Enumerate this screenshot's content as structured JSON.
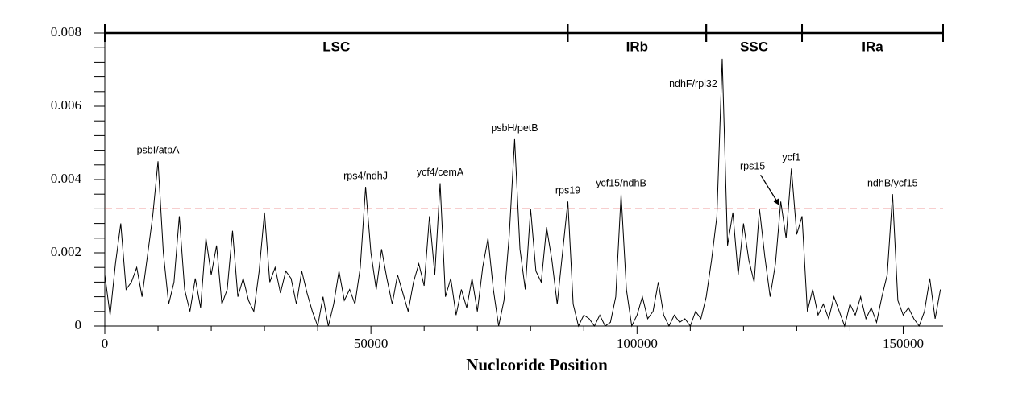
{
  "chart_data": {
    "type": "line",
    "xlabel": "Nucleoride Position",
    "xlim": [
      0,
      157500
    ],
    "ylim": [
      0,
      0.008
    ],
    "xticks": [
      0,
      50000,
      100000,
      150000
    ],
    "xminorticks": [
      10000,
      20000,
      30000,
      40000,
      60000,
      70000,
      80000,
      90000,
      110000,
      120000,
      130000,
      140000
    ],
    "yticks": [
      0,
      0.002,
      0.004,
      0.006,
      0.008
    ],
    "yminorticks": [
      0.0004,
      0.0008,
      0.0012,
      0.0016,
      0.0024,
      0.0028,
      0.0032,
      0.0036,
      0.0044,
      0.0048,
      0.0052,
      0.0056,
      0.0064,
      0.0068,
      0.0072,
      0.0076
    ],
    "threshold": {
      "value": 0.0032,
      "color": "#e03a3a"
    },
    "regions": [
      {
        "name": "LSC",
        "start": 0,
        "end": 87000
      },
      {
        "name": "IRb",
        "start": 87000,
        "end": 113000
      },
      {
        "name": "SSC",
        "start": 113000,
        "end": 131000
      },
      {
        "name": "IRa",
        "start": 131000,
        "end": 157500
      }
    ],
    "annotations": [
      {
        "text": "psbI/atpA",
        "x": 10000,
        "y": 0.0045
      },
      {
        "text": "rps4/ndhJ",
        "x": 49000,
        "y": 0.0038
      },
      {
        "text": "ycf4/cemA",
        "x": 63000,
        "y": 0.0039
      },
      {
        "text": "psbH/petB",
        "x": 77000,
        "y": 0.0051
      },
      {
        "text": "rps19",
        "x": 87000,
        "y": 0.0034
      },
      {
        "text": "ycf15/ndhB",
        "x": 97000,
        "y": 0.0036
      },
      {
        "text": "ndhF/rpl32",
        "x": 116000,
        "y": 0.0073
      },
      {
        "text": "rps15",
        "x": 127000,
        "y": 0.0034
      },
      {
        "text": "ycf1",
        "x": 129000,
        "y": 0.0043
      },
      {
        "text": "ndhB/ycf15",
        "x": 148000,
        "y": 0.0036
      }
    ],
    "x": [
      0,
      1000,
      2000,
      3000,
      4000,
      5000,
      6000,
      7000,
      8000,
      9000,
      10000,
      11000,
      12000,
      13000,
      14000,
      15000,
      16000,
      17000,
      18000,
      19000,
      20000,
      21000,
      22000,
      23000,
      24000,
      25000,
      26000,
      27000,
      28000,
      29000,
      30000,
      31000,
      32000,
      33000,
      34000,
      35000,
      36000,
      37000,
      38000,
      39000,
      40000,
      41000,
      42000,
      43000,
      44000,
      45000,
      46000,
      47000,
      48000,
      49000,
      50000,
      51000,
      52000,
      53000,
      54000,
      55000,
      56000,
      57000,
      58000,
      59000,
      60000,
      61000,
      62000,
      63000,
      64000,
      65000,
      66000,
      67000,
      68000,
      69000,
      70000,
      71000,
      72000,
      73000,
      74000,
      75000,
      76000,
      77000,
      78000,
      79000,
      80000,
      81000,
      82000,
      83000,
      84000,
      85000,
      86000,
      87000,
      88000,
      89000,
      90000,
      91000,
      92000,
      93000,
      94000,
      95000,
      96000,
      97000,
      98000,
      99000,
      100000,
      101000,
      102000,
      103000,
      104000,
      105000,
      106000,
      107000,
      108000,
      109000,
      110000,
      111000,
      112000,
      113000,
      114000,
      115000,
      116000,
      117000,
      118000,
      119000,
      120000,
      121000,
      122000,
      123000,
      124000,
      125000,
      126000,
      127000,
      128000,
      129000,
      130000,
      131000,
      132000,
      133000,
      134000,
      135000,
      136000,
      137000,
      138000,
      139000,
      140000,
      141000,
      142000,
      143000,
      144000,
      145000,
      146000,
      147000,
      148000,
      149000,
      150000,
      151000,
      152000,
      153000,
      154000,
      155000,
      156000,
      157000
    ],
    "series": [
      {
        "color": "#000000",
        "values": [
          0.0014,
          0.0003,
          0.0017,
          0.0028,
          0.001,
          0.0012,
          0.0016,
          0.0008,
          0.0019,
          0.003,
          0.0045,
          0.002,
          0.0006,
          0.0012,
          0.003,
          0.001,
          0.0004,
          0.0013,
          0.0005,
          0.0024,
          0.0014,
          0.0022,
          0.0006,
          0.001,
          0.0026,
          0.0008,
          0.0013,
          0.0007,
          0.0004,
          0.0015,
          0.0031,
          0.0012,
          0.0016,
          0.0009,
          0.0015,
          0.0013,
          0.0006,
          0.0015,
          0.0009,
          0.0004,
          0,
          0.0008,
          0,
          0.0006,
          0.0015,
          0.0007,
          0.001,
          0.0006,
          0.0016,
          0.0038,
          0.002,
          0.001,
          0.0021,
          0.0013,
          0.0006,
          0.0014,
          0.0009,
          0.0004,
          0.0012,
          0.0017,
          0.0011,
          0.003,
          0.0014,
          0.0039,
          0.0008,
          0.0013,
          0.0003,
          0.001,
          0.0005,
          0.0013,
          0.0004,
          0.0016,
          0.0024,
          0.001,
          0,
          0.0007,
          0.0025,
          0.0051,
          0.0021,
          0.001,
          0.0032,
          0.0015,
          0.0012,
          0.0027,
          0.0018,
          0.0006,
          0.002,
          0.0034,
          0.0006,
          0,
          0.0003,
          0.0002,
          0,
          0.0003,
          0,
          0.0001,
          0.0008,
          0.0036,
          0.001,
          0,
          0.0003,
          0.0008,
          0.0002,
          0.0004,
          0.0012,
          0.0003,
          0,
          0.0003,
          0.0001,
          0.0002,
          0,
          0.0004,
          0.0002,
          0.0008,
          0.0018,
          0.003,
          0.0073,
          0.0022,
          0.0031,
          0.0014,
          0.0028,
          0.0018,
          0.0012,
          0.0032,
          0.0019,
          0.0008,
          0.0017,
          0.0034,
          0.0024,
          0.0043,
          0.0025,
          0.003,
          0.0004,
          0.001,
          0.0003,
          0.0006,
          0.0002,
          0.0008,
          0.0004,
          0,
          0.0006,
          0.0003,
          0.0008,
          0.0002,
          0.0005,
          0.0001,
          0.0008,
          0.0014,
          0.0036,
          0.0007,
          0.0003,
          0.0005,
          0.0002,
          0,
          0.0004,
          0.0013,
          0.0002,
          0.001
        ]
      }
    ]
  }
}
